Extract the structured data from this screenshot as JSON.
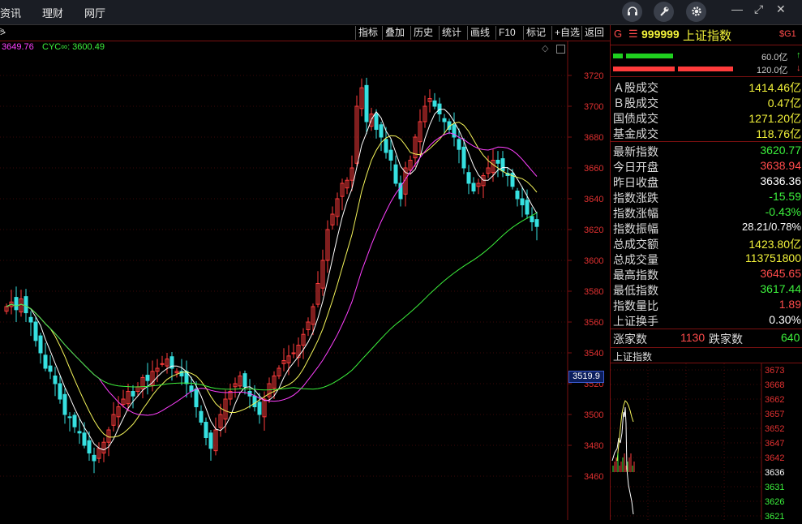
{
  "topbar": {
    "menu": [
      "资讯",
      "理财",
      "网厅"
    ],
    "icons": [
      "headset-icon",
      "wrench-icon",
      "gear-icon"
    ],
    "window": [
      "—",
      "⤢",
      "✕"
    ]
  },
  "toolbar": {
    "left_mark": ">",
    "buttons": [
      "指标",
      "叠加",
      "历史",
      "统计",
      "画线",
      "F10",
      "标记",
      "+自选",
      "返回"
    ]
  },
  "chart": {
    "legend_left": "3649.76",
    "legend_cyc": "CYC∞: 3600.49",
    "price_labels": [
      "3720",
      "3700",
      "3680",
      "3660",
      "3640",
      "3620",
      "3600",
      "3580",
      "3560",
      "3540",
      "3520",
      "3500",
      "3480",
      "3460"
    ],
    "cursor_value": "3519.9",
    "left_arrow": ">"
  },
  "panel": {
    "header": {
      "prefix": "G",
      "menu_glyph": "☰",
      "code": "999999",
      "name": "上证指数",
      "badge": "$G1"
    },
    "bars": [
      {
        "label": "60.0亿",
        "arrow": "↑"
      },
      {
        "label": "120.0亿",
        "arrow": "↓"
      }
    ],
    "turnover": [
      {
        "label": "Ａ股成交",
        "value": "1414.46亿"
      },
      {
        "label": "Ｂ股成交",
        "value": "0.47亿"
      },
      {
        "label": "国债成交",
        "value": "1271.20亿"
      },
      {
        "label": "基金成交",
        "value": "118.76亿"
      }
    ],
    "stats": [
      {
        "label": "最新指数",
        "value": "3620.77",
        "color": "green"
      },
      {
        "label": "今日开盘",
        "value": "3638.94",
        "color": "red"
      },
      {
        "label": "昨日收盘",
        "value": "3636.36",
        "color": "white"
      },
      {
        "label": "指数涨跌",
        "value": "-15.59",
        "color": "green"
      },
      {
        "label": "指数涨幅",
        "value": "-0.43%",
        "color": "green"
      },
      {
        "label": "指数振幅",
        "value": "28.21/0.78%",
        "color": "white"
      },
      {
        "label": "总成交额",
        "value": "1423.80亿",
        "color": "yellow"
      },
      {
        "label": "总成交量",
        "value": "113751800",
        "color": "yellow"
      },
      {
        "label": "最高指数",
        "value": "3645.65",
        "color": "red"
      },
      {
        "label": "最低指数",
        "value": "3617.44",
        "color": "green"
      },
      {
        "label": "指数量比",
        "value": "1.89",
        "color": "red"
      },
      {
        "label": "上证换手",
        "value": "0.30%",
        "color": "white"
      }
    ],
    "breadth": {
      "up_label": "涨家数",
      "up_value": "1130",
      "down_label": "跌家数",
      "down_value": "640"
    },
    "mini_title": "上证指数",
    "mini_labels": [
      "3673",
      "3668",
      "3662",
      "3657",
      "3652",
      "3647",
      "3642",
      "3636",
      "3631",
      "3626",
      "3621"
    ]
  },
  "colors": {
    "up": "#ff3b3b",
    "down": "#36e0e0",
    "ma5": "#ffffff",
    "ma10": "#f5f55a",
    "ma20": "#ff40ff",
    "ma60": "#3cf03c",
    "grid": "#7a1010"
  }
}
